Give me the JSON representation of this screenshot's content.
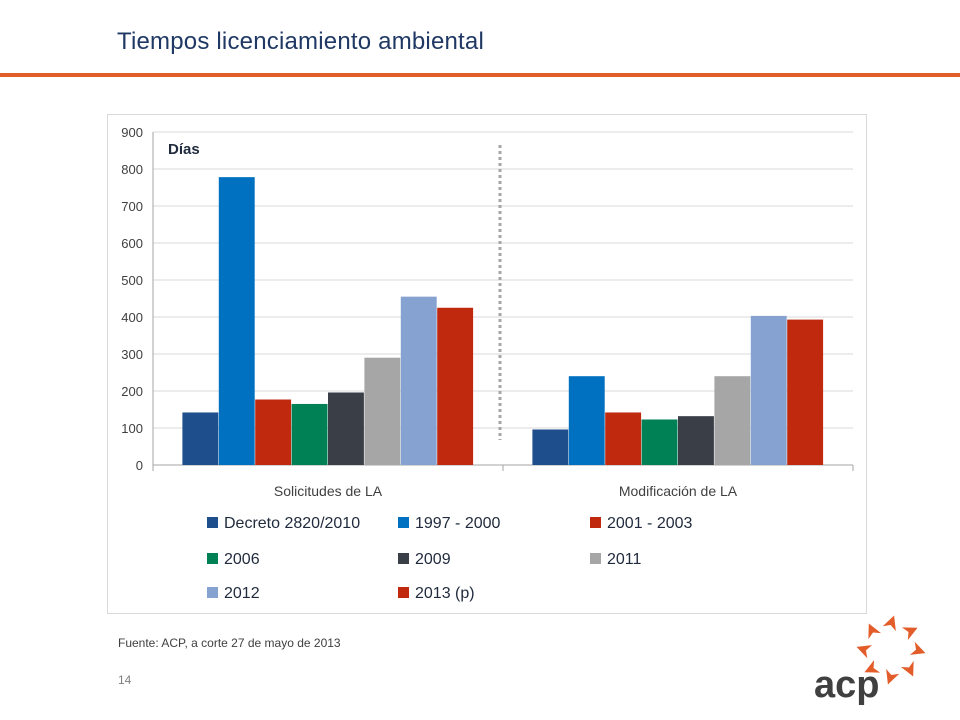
{
  "page": {
    "title": "Tiempos licenciamiento ambiental",
    "source": "Fuente: ACP, a corte 27 de mayo de 2013",
    "page_number": "14",
    "logo_text": "acp",
    "accent_color": "#e35d2b"
  },
  "chart_data": {
    "type": "bar",
    "ylabel": "Días",
    "ylim": [
      0,
      900
    ],
    "yticks": [
      0,
      100,
      200,
      300,
      400,
      500,
      600,
      700,
      800,
      900
    ],
    "grid": true,
    "legend_position": "bottom",
    "categories": [
      "Solicitudes de LA",
      "Modificación de LA"
    ],
    "series": [
      {
        "name": "Decreto 2820/2010",
        "color": "#1f4e8c",
        "values": [
          142,
          96
        ]
      },
      {
        "name": "1997 - 2000",
        "color": "#0070c0",
        "values": [
          778,
          240
        ]
      },
      {
        "name": "2001 - 2003",
        "color": "#c0290e",
        "values": [
          177,
          142
        ]
      },
      {
        "name": "2006",
        "color": "#008055",
        "values": [
          165,
          123
        ]
      },
      {
        "name": "2009",
        "color": "#3a3f47",
        "values": [
          196,
          132
        ]
      },
      {
        "name": "2011",
        "color": "#a6a6a6",
        "values": [
          290,
          240
        ]
      },
      {
        "name": "2012",
        "color": "#86a2d0",
        "values": [
          455,
          403
        ]
      },
      {
        "name": "2013 (p)",
        "color": "#c0290e",
        "values": [
          425,
          393
        ]
      }
    ]
  }
}
